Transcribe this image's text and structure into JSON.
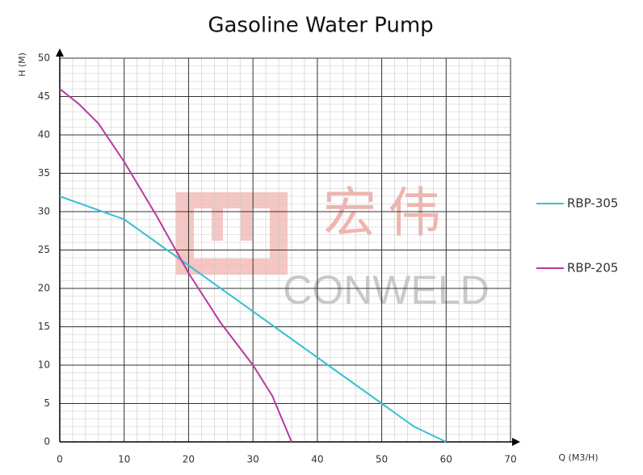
{
  "chart_data": {
    "type": "line",
    "title": "Gasoline Water Pump",
    "x_label": "Q (M3/H)",
    "y_label": "H (M)",
    "watermark": {
      "chinese": "宏伟",
      "brand": "CONWELD"
    },
    "xlim": [
      0,
      70
    ],
    "xticks": [
      0,
      10,
      20,
      30,
      40,
      50,
      60,
      70
    ],
    "ylim": [
      0,
      50
    ],
    "yticks": [
      0,
      5,
      10,
      15,
      20,
      25,
      30,
      35,
      40,
      45,
      50
    ],
    "grid": true,
    "minor_grid": {
      "x": 2,
      "y": 1
    },
    "legend": "right",
    "series": [
      {
        "name": "RBP-305",
        "color": "#3bbfd6",
        "x": [
          0,
          5,
          10,
          15,
          20,
          25,
          30,
          35,
          40,
          45,
          50,
          55,
          60
        ],
        "values": [
          32,
          30.5,
          29,
          26,
          23,
          20,
          17,
          14,
          11,
          8,
          5,
          2,
          0
        ]
      },
      {
        "name": "RBP-205",
        "color": "#b9399f",
        "x": [
          0,
          3,
          6,
          10,
          15,
          20,
          25,
          30,
          33,
          36
        ],
        "values": [
          46,
          44,
          41.5,
          36.5,
          29.5,
          22,
          15.5,
          10,
          6,
          0
        ]
      }
    ]
  }
}
